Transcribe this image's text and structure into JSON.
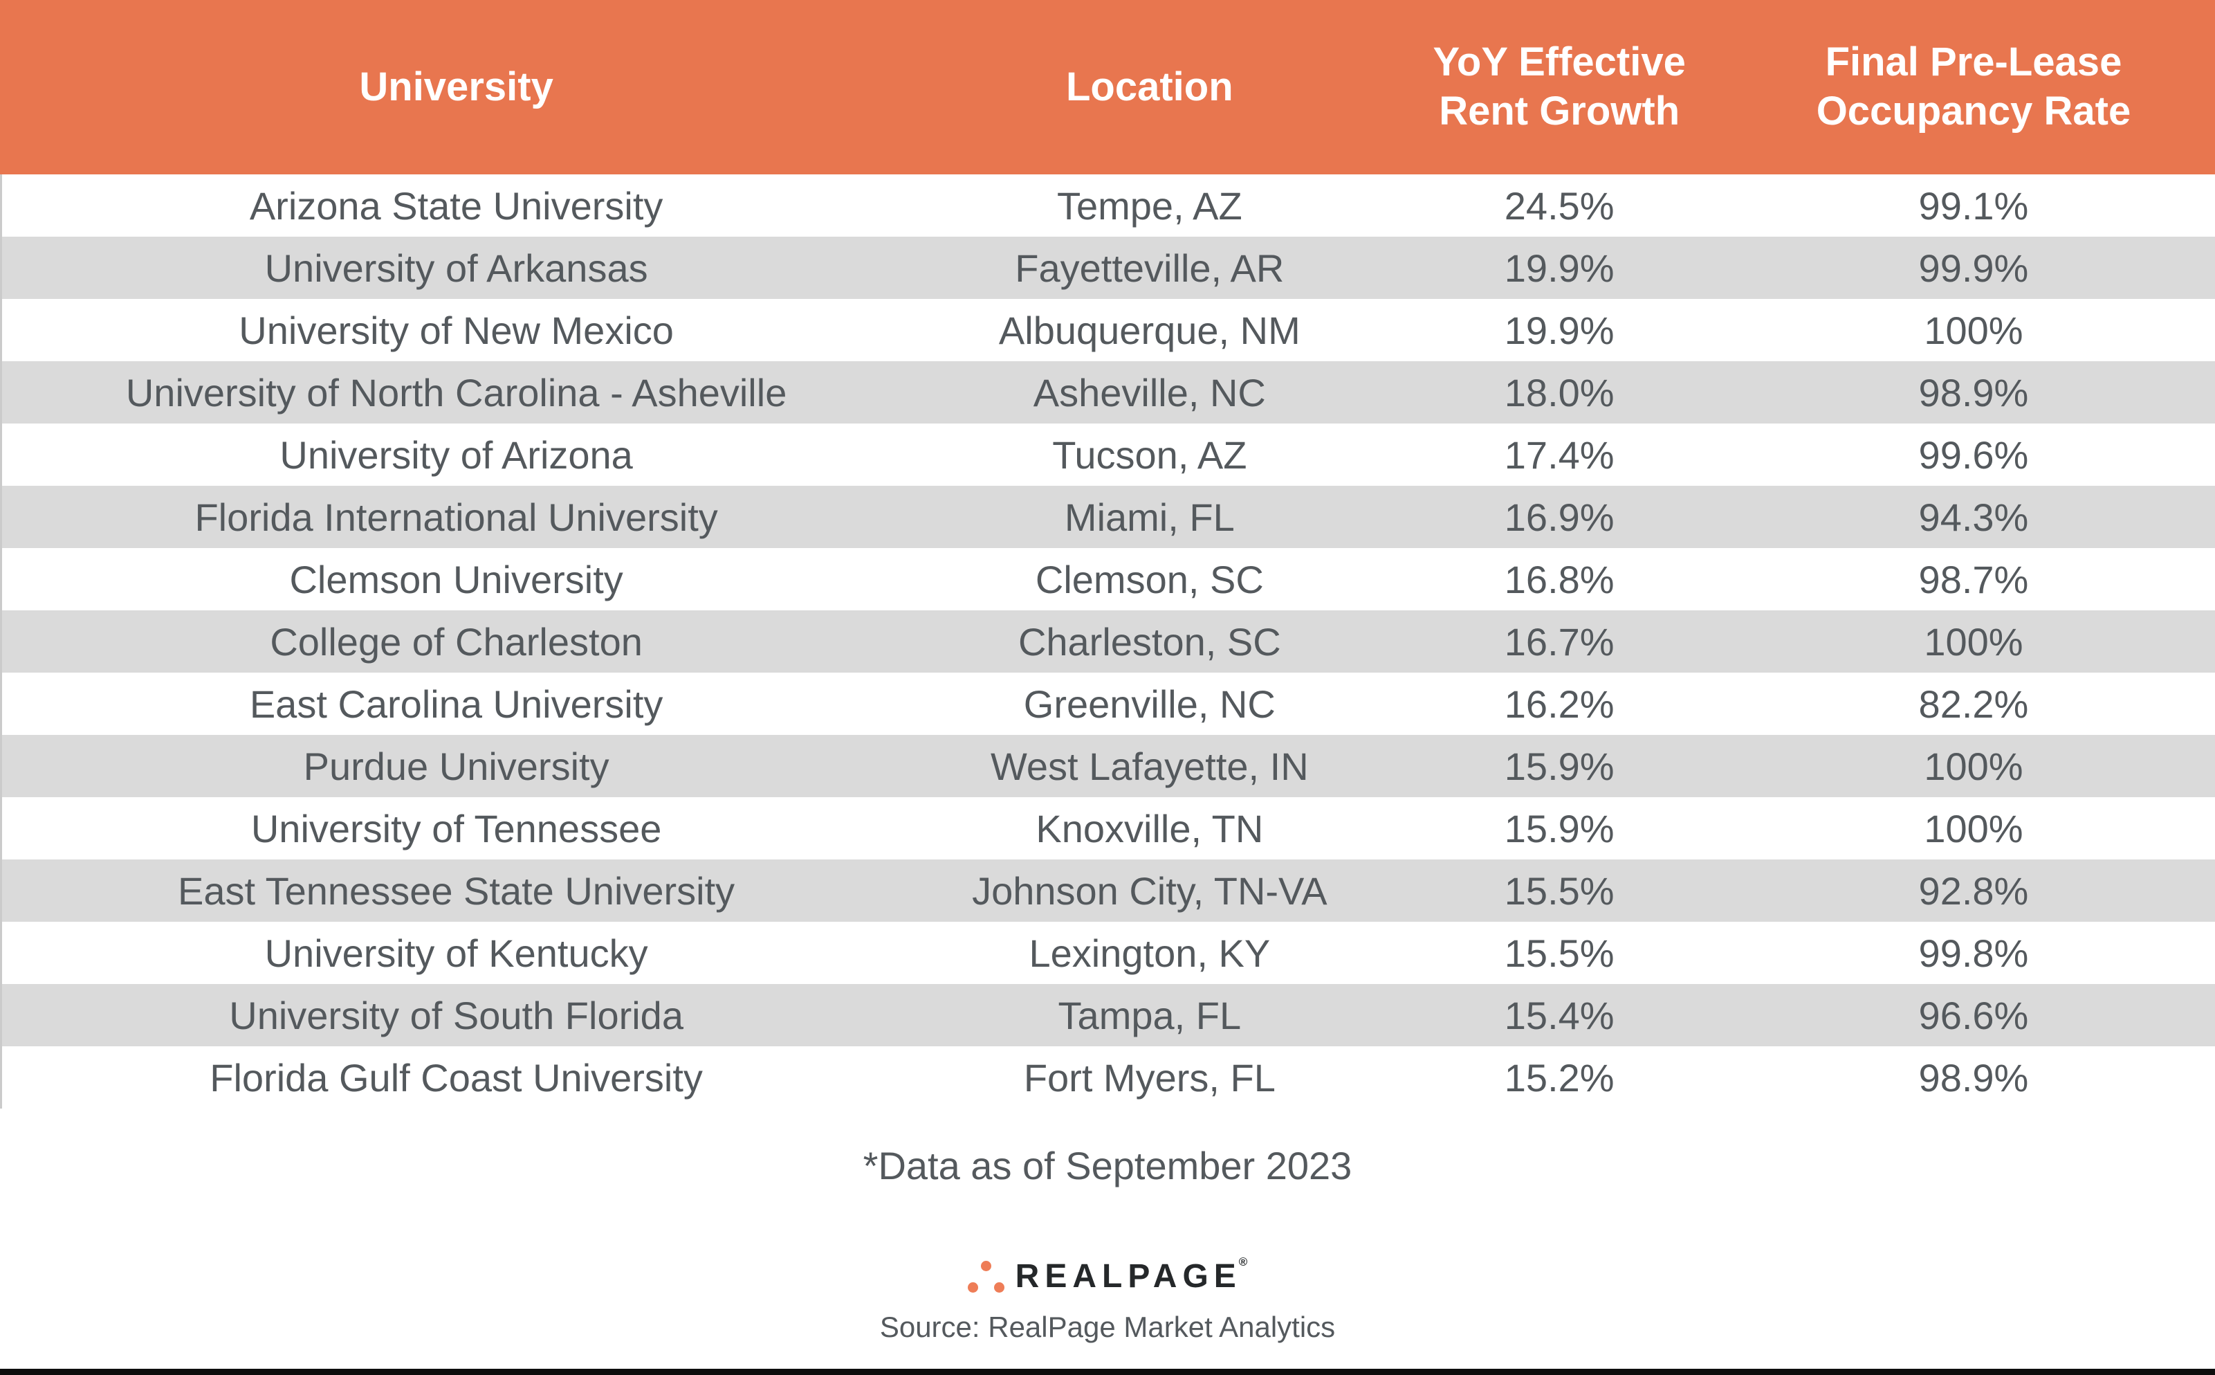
{
  "colors": {
    "accent": "#E8764F",
    "row_alt": "#DADADA",
    "text": "#54595D",
    "logo_text": "#25282A",
    "dot": "#EE7D57",
    "bottom_bar": "#0D0D0D",
    "left_edge": "#CBCBCB"
  },
  "chart_data": {
    "type": "table",
    "columns": [
      "University",
      "Location",
      "YoY Effective Rent Growth",
      "Final Pre-Lease Occupancy Rate"
    ],
    "rows": [
      [
        "Arizona State University",
        "Tempe, AZ",
        "24.5%",
        "99.1%"
      ],
      [
        "University of Arkansas",
        "Fayetteville, AR",
        "19.9%",
        "99.9%"
      ],
      [
        "University of New Mexico",
        "Albuquerque, NM",
        "19.9%",
        "100%"
      ],
      [
        "University of North Carolina - Asheville",
        "Asheville, NC",
        "18.0%",
        "98.9%"
      ],
      [
        "University of Arizona",
        "Tucson, AZ",
        "17.4%",
        "99.6%"
      ],
      [
        "Florida International University",
        "Miami, FL",
        "16.9%",
        "94.3%"
      ],
      [
        "Clemson University",
        "Clemson, SC",
        "16.8%",
        "98.7%"
      ],
      [
        "College of Charleston",
        "Charleston, SC",
        "16.7%",
        "100%"
      ],
      [
        "East Carolina University",
        "Greenville, NC",
        "16.2%",
        "82.2%"
      ],
      [
        "Purdue University",
        "West Lafayette, IN",
        "15.9%",
        "100%"
      ],
      [
        "University of Tennessee",
        "Knoxville, TN",
        "15.9%",
        "100%"
      ],
      [
        "East Tennessee State University",
        "Johnson City, TN-VA",
        "15.5%",
        "92.8%"
      ],
      [
        "University of Kentucky",
        "Lexington, KY",
        "15.5%",
        "99.8%"
      ],
      [
        "University of South Florida",
        "Tampa, FL",
        "15.4%",
        "96.6%"
      ],
      [
        "Florida Gulf Coast University",
        "Fort Myers, FL",
        "15.2%",
        "98.9%"
      ]
    ],
    "footnote": "*Data as of September 2023",
    "source": "Source: RealPage Market Analytics",
    "legend_position": "none",
    "grid": false
  },
  "footer": {
    "logo_text": "REALPAGE",
    "registered_mark": "®"
  }
}
